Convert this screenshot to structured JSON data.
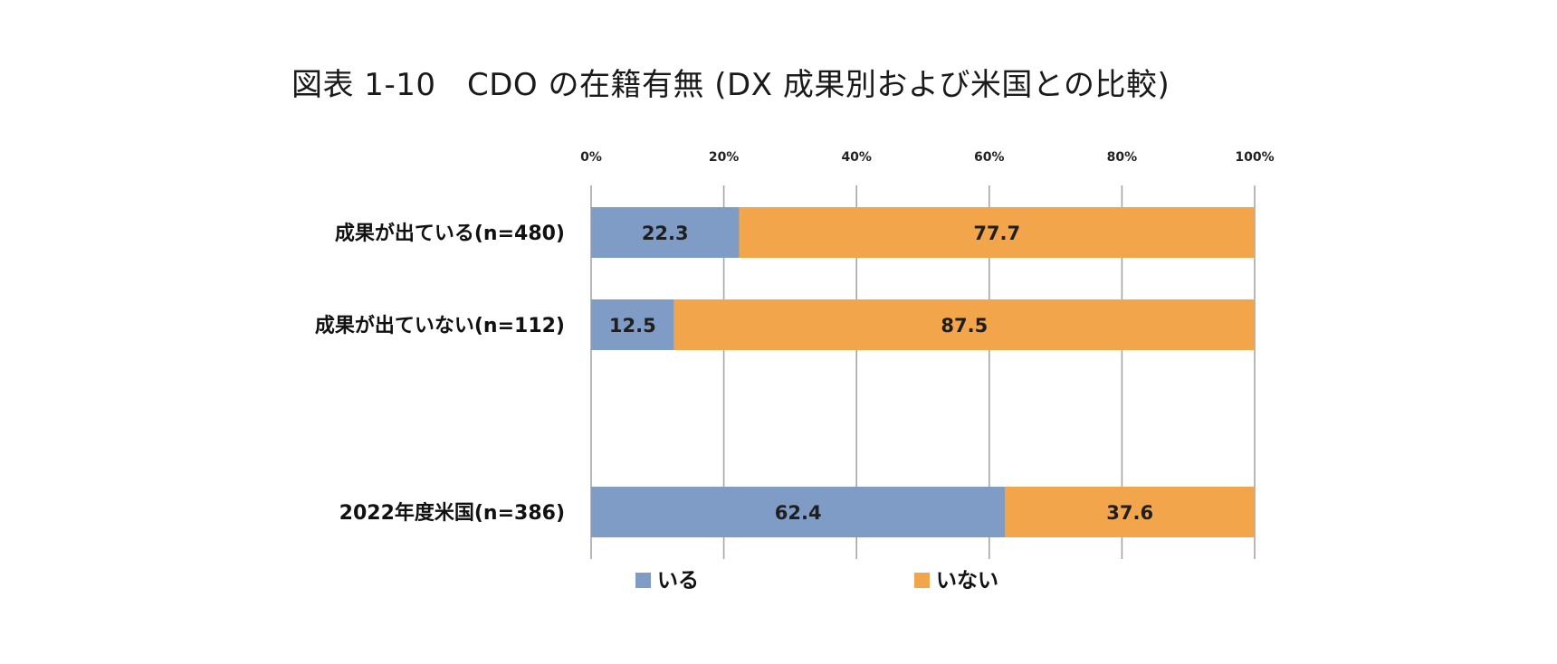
{
  "chart_data": {
    "type": "bar",
    "orientation": "horizontal",
    "stacked": true,
    "percent_stacked": true,
    "title": "図表 1-10　CDO の在籍有無 (DX 成果別および米国との比較)",
    "categories": [
      "成果が出ている(n=480)",
      "成果が出ていない(n=112)",
      "2022年度米国(n=386)"
    ],
    "series": [
      {
        "name": "いる",
        "values": [
          22.3,
          12.5,
          62.4
        ],
        "color": "#7f9cc6"
      },
      {
        "name": "いない",
        "values": [
          77.7,
          87.5,
          37.6
        ],
        "color": "#f2a54a"
      }
    ],
    "x_ticks": [
      "0%",
      "20%",
      "40%",
      "60%",
      "80%",
      "100%"
    ],
    "xlim": [
      0,
      100
    ],
    "xaxis_position": "top",
    "grid": true,
    "legend": "bottom"
  }
}
